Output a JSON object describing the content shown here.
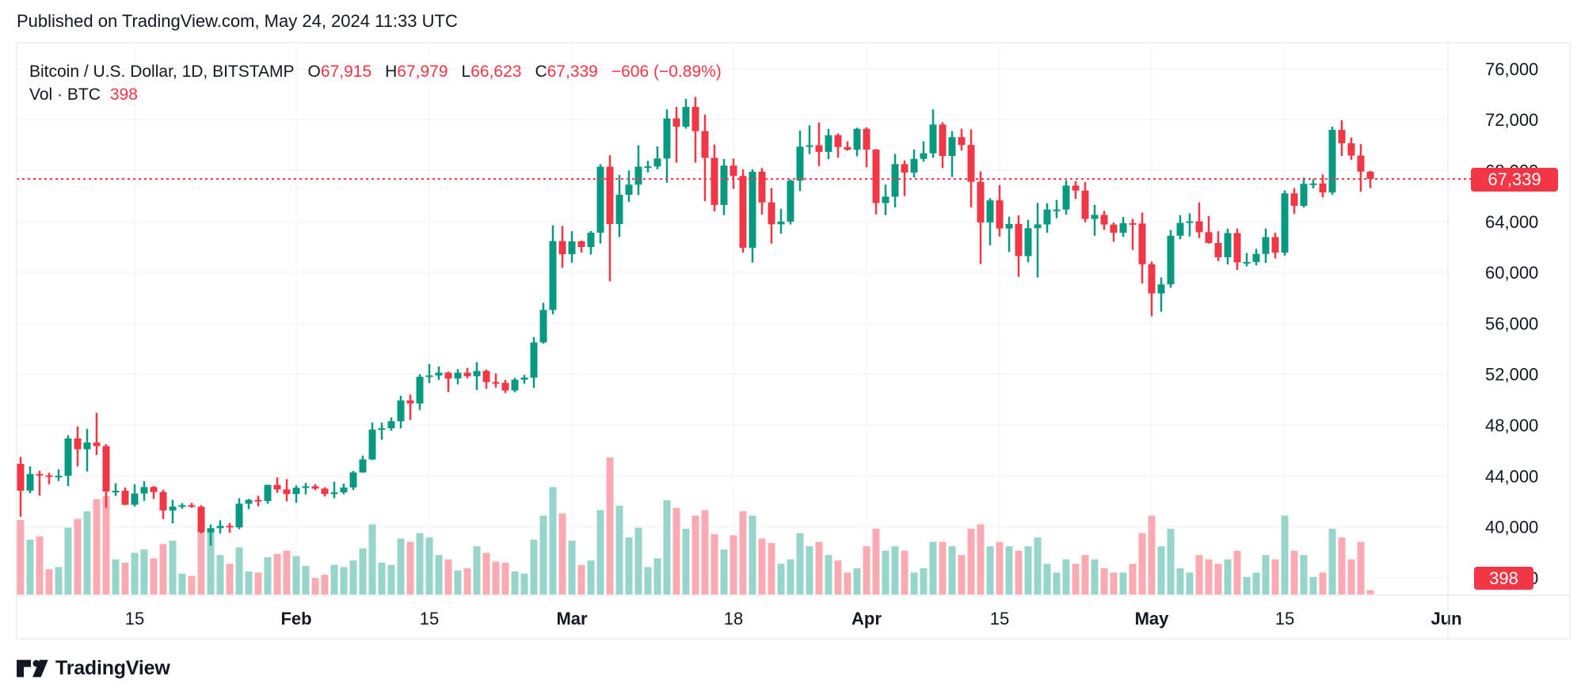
{
  "header": {
    "published": "Published on TradingView.com, May 24, 2024 11:33 UTC"
  },
  "legend": {
    "title": "Bitcoin / U.S. Dollar, 1D, BITSTAMP",
    "open_label": "O",
    "open_value": "67,915",
    "high_label": "H",
    "high_value": "67,979",
    "low_label": "L",
    "low_value": "66,623",
    "close_label": "C",
    "close_value": "67,339",
    "change": "−606 (−0.89%)",
    "volume_label": "Vol · BTC",
    "volume_value": "398"
  },
  "axes": {
    "price_badge": "67,339",
    "volume_badge": "398",
    "price_ticks": [
      {
        "price": 76000,
        "label": "76,000"
      },
      {
        "price": 72000,
        "label": "72,000"
      },
      {
        "price": 68000,
        "label": "68,000"
      },
      {
        "price": 64000,
        "label": "64,000"
      },
      {
        "price": 60000,
        "label": "60,000"
      },
      {
        "price": 56000,
        "label": "56,000"
      },
      {
        "price": 52000,
        "label": "52,000"
      },
      {
        "price": 48000,
        "label": "48,000"
      },
      {
        "price": 44000,
        "label": "44,000"
      },
      {
        "price": 40000,
        "label": "40,000"
      },
      {
        "price": 36000,
        "label": "36,000"
      }
    ],
    "time_ticks": [
      {
        "index": 12,
        "label": "15",
        "bold": false
      },
      {
        "index": 29,
        "label": "Feb",
        "bold": true
      },
      {
        "index": 43,
        "label": "15",
        "bold": false
      },
      {
        "index": 58,
        "label": "Mar",
        "bold": true
      },
      {
        "index": 75,
        "label": "18",
        "bold": false
      },
      {
        "index": 89,
        "label": "Apr",
        "bold": true
      },
      {
        "index": 103,
        "label": "15",
        "bold": false
      },
      {
        "index": 119,
        "label": "May",
        "bold": true
      },
      {
        "index": 133,
        "label": "15",
        "bold": false
      },
      {
        "index": 150,
        "label": "Jun",
        "bold": true
      }
    ]
  },
  "footer": {
    "brand": "TradingView"
  },
  "colors": {
    "up": "#089981",
    "down": "#f23645",
    "vol_up": "#97d4ca",
    "vol_down": "#f9abb1",
    "accent": "#f23645",
    "text": "#131722",
    "grid": "#f0f2f5",
    "border": "#e0e3eb"
  },
  "chart_data": {
    "type": "candlestick",
    "title": "Bitcoin / U.S. Dollar, 1D, BITSTAMP",
    "symbol": "BTC/USD",
    "exchange": "BITSTAMP",
    "interval": "1D",
    "legend_ohlc": {
      "open": 67915,
      "high": 67979,
      "low": 66623,
      "close": 67339,
      "change": -606,
      "change_pct": -0.89
    },
    "last_close": 67339,
    "last_volume_btc": 398,
    "price_ylim": [
      34700,
      78550
    ],
    "x_start": "2024-01-03",
    "x_end": "2024-06-01",
    "volume_scale_max": 12500,
    "candles": [
      [
        "2024-01-03",
        44950,
        45500,
        40800,
        42850,
        6800
      ],
      [
        "2024-01-04",
        42850,
        44750,
        42650,
        44150,
        5000
      ],
      [
        "2024-01-05",
        44160,
        44400,
        42450,
        44050,
        5300
      ],
      [
        "2024-01-06",
        44050,
        44250,
        43350,
        43970,
        2300
      ],
      [
        "2024-01-07",
        43970,
        44500,
        43600,
        44020,
        2500
      ],
      [
        "2024-01-08",
        44020,
        47200,
        43200,
        46950,
        6100
      ],
      [
        "2024-01-09",
        46950,
        47900,
        44750,
        46100,
        6900
      ],
      [
        "2024-01-10",
        46100,
        47700,
        44350,
        46630,
        7600
      ],
      [
        "2024-01-11",
        46630,
        48970,
        45650,
        46350,
        8700
      ],
      [
        "2024-01-12",
        46350,
        46500,
        41500,
        42780,
        9000
      ],
      [
        "2024-01-13",
        42780,
        43430,
        42430,
        42840,
        3200
      ],
      [
        "2024-01-14",
        42840,
        43100,
        41700,
        41740,
        2900
      ],
      [
        "2024-01-15",
        41740,
        43350,
        41600,
        42620,
        3800
      ],
      [
        "2024-01-16",
        42620,
        43580,
        42050,
        43130,
        4100
      ],
      [
        "2024-01-17",
        43130,
        43200,
        42190,
        42740,
        3300
      ],
      [
        "2024-01-18",
        42740,
        42920,
        40620,
        41290,
        4600
      ],
      [
        "2024-01-19",
        41290,
        42130,
        40280,
        41600,
        4900
      ],
      [
        "2024-01-20",
        41600,
        41870,
        41420,
        41700,
        1900
      ],
      [
        "2024-01-21",
        41700,
        41880,
        41500,
        41580,
        1700
      ],
      [
        "2024-01-22",
        41580,
        41700,
        39480,
        39560,
        5600
      ],
      [
        "2024-01-23",
        39560,
        40180,
        38530,
        39900,
        5900
      ],
      [
        "2024-01-24",
        39900,
        40520,
        39480,
        40080,
        3600
      ],
      [
        "2024-01-25",
        40080,
        40300,
        39550,
        39960,
        2800
      ],
      [
        "2024-01-26",
        39960,
        42250,
        39820,
        41820,
        4300
      ],
      [
        "2024-01-27",
        41820,
        42200,
        41400,
        42120,
        2100
      ],
      [
        "2024-01-28",
        42120,
        42450,
        41620,
        42030,
        2000
      ],
      [
        "2024-01-29",
        42030,
        43320,
        41820,
        43300,
        3400
      ],
      [
        "2024-01-30",
        43300,
        43880,
        42680,
        42940,
        3700
      ],
      [
        "2024-01-31",
        42940,
        43750,
        42000,
        42580,
        4000
      ],
      [
        "2024-02-01",
        42580,
        43260,
        41900,
        43080,
        3500
      ],
      [
        "2024-02-02",
        43080,
        43450,
        42550,
        43190,
        2600
      ],
      [
        "2024-02-03",
        43190,
        43360,
        42880,
        43010,
        1500
      ],
      [
        "2024-02-04",
        43010,
        43120,
        42400,
        42580,
        1800
      ],
      [
        "2024-02-05",
        42580,
        43550,
        42250,
        42710,
        2700
      ],
      [
        "2024-02-06",
        42710,
        43400,
        42560,
        43100,
        2500
      ],
      [
        "2024-02-07",
        43100,
        44400,
        42900,
        44280,
        3100
      ],
      [
        "2024-02-08",
        44280,
        45600,
        44250,
        45300,
        4200
      ],
      [
        "2024-02-09",
        45300,
        48200,
        45250,
        47650,
        6400
      ],
      [
        "2024-02-10",
        47650,
        48200,
        46850,
        47750,
        2900
      ],
      [
        "2024-02-11",
        47750,
        48600,
        47550,
        48300,
        2700
      ],
      [
        "2024-02-12",
        48300,
        50300,
        47750,
        49940,
        5100
      ],
      [
        "2024-02-13",
        49940,
        50400,
        48400,
        49700,
        4800
      ],
      [
        "2024-02-14",
        49700,
        52000,
        49200,
        51800,
        5600
      ],
      [
        "2024-02-15",
        51800,
        52800,
        51300,
        51900,
        5200
      ],
      [
        "2024-02-16",
        51900,
        52600,
        51550,
        52120,
        3600
      ],
      [
        "2024-02-17",
        52120,
        52200,
        50600,
        51660,
        3200
      ],
      [
        "2024-02-18",
        51660,
        52400,
        51200,
        52120,
        2200
      ],
      [
        "2024-02-19",
        52120,
        52500,
        51680,
        51840,
        2400
      ],
      [
        "2024-02-20",
        51840,
        52940,
        50760,
        52250,
        4400
      ],
      [
        "2024-02-21",
        52250,
        52370,
        50850,
        51380,
        3800
      ],
      [
        "2024-02-22",
        51380,
        52060,
        50940,
        51320,
        3000
      ],
      [
        "2024-02-23",
        51320,
        51550,
        50520,
        50720,
        2900
      ],
      [
        "2024-02-24",
        50720,
        51720,
        50580,
        51570,
        2100
      ],
      [
        "2024-02-25",
        51570,
        51950,
        51250,
        51730,
        1900
      ],
      [
        "2024-02-26",
        51730,
        54900,
        50920,
        54500,
        5000
      ],
      [
        "2024-02-27",
        54500,
        57600,
        54400,
        57050,
        7200
      ],
      [
        "2024-02-28",
        57050,
        63700,
        56700,
        62460,
        9800
      ],
      [
        "2024-02-29",
        62460,
        63650,
        60360,
        61430,
        7400
      ],
      [
        "2024-03-01",
        61430,
        63230,
        60770,
        62440,
        4900
      ],
      [
        "2024-03-02",
        62440,
        62500,
        61560,
        61990,
        2700
      ],
      [
        "2024-03-03",
        61990,
        63250,
        61400,
        63120,
        3100
      ],
      [
        "2024-03-04",
        63120,
        68500,
        62270,
        68300,
        7700
      ],
      [
        "2024-03-05",
        68300,
        69200,
        59300,
        63800,
        12500
      ],
      [
        "2024-03-06",
        63800,
        67650,
        62780,
        66100,
        8100
      ],
      [
        "2024-03-07",
        66100,
        68000,
        65550,
        66900,
        5200
      ],
      [
        "2024-03-08",
        66900,
        69990,
        66080,
        68300,
        6100
      ],
      [
        "2024-03-09",
        68300,
        68760,
        67850,
        68330,
        2500
      ],
      [
        "2024-03-10",
        68330,
        69900,
        68100,
        68950,
        3300
      ],
      [
        "2024-03-11",
        68950,
        72800,
        67050,
        72100,
        8600
      ],
      [
        "2024-03-12",
        72100,
        73000,
        68620,
        71450,
        7900
      ],
      [
        "2024-03-13",
        71450,
        73630,
        71300,
        73000,
        6000
      ],
      [
        "2024-03-14",
        73000,
        73790,
        68620,
        71100,
        7200
      ],
      [
        "2024-03-15",
        71100,
        72400,
        65600,
        69000,
        7700
      ],
      [
        "2024-03-16",
        69000,
        70050,
        64800,
        65300,
        5500
      ],
      [
        "2024-03-17",
        65300,
        68900,
        64500,
        68390,
        4100
      ],
      [
        "2024-03-18",
        68390,
        68950,
        66560,
        67580,
        5400
      ],
      [
        "2024-03-19",
        67580,
        68100,
        61550,
        61930,
        7600
      ],
      [
        "2024-03-20",
        61930,
        68100,
        60770,
        67910,
        7200
      ],
      [
        "2024-03-21",
        67910,
        68200,
        64550,
        65500,
        5100
      ],
      [
        "2024-03-22",
        65500,
        66620,
        62260,
        63780,
        4700
      ],
      [
        "2024-03-23",
        63780,
        65000,
        63060,
        63990,
        2800
      ],
      [
        "2024-03-24",
        63990,
        67300,
        63770,
        67210,
        3200
      ],
      [
        "2024-03-25",
        67210,
        71150,
        66400,
        69880,
        5600
      ],
      [
        "2024-03-26",
        69880,
        71560,
        69300,
        69990,
        4400
      ],
      [
        "2024-03-27",
        69990,
        71770,
        68360,
        69470,
        4800
      ],
      [
        "2024-03-28",
        69470,
        71270,
        68900,
        70780,
        3600
      ],
      [
        "2024-03-29",
        70780,
        70920,
        69020,
        69850,
        3100
      ],
      [
        "2024-03-30",
        69850,
        70300,
        69560,
        69640,
        2000
      ],
      [
        "2024-03-31",
        69640,
        71370,
        69120,
        71280,
        2400
      ],
      [
        "2024-04-01",
        71280,
        71400,
        68250,
        69650,
        4400
      ],
      [
        "2024-04-02",
        69650,
        69700,
        64560,
        65450,
        6000
      ],
      [
        "2024-04-03",
        65450,
        66900,
        64500,
        65950,
        4000
      ],
      [
        "2024-04-04",
        65950,
        69300,
        65100,
        68510,
        4400
      ],
      [
        "2024-04-05",
        68510,
        68800,
        66000,
        67840,
        4000
      ],
      [
        "2024-04-06",
        67840,
        69650,
        67450,
        68920,
        2000
      ],
      [
        "2024-04-07",
        68920,
        70300,
        68700,
        69360,
        2400
      ],
      [
        "2024-04-08",
        69360,
        72800,
        69000,
        71620,
        4800
      ],
      [
        "2024-04-09",
        71620,
        71800,
        68200,
        69150,
        4800
      ],
      [
        "2024-04-10",
        69150,
        71100,
        67500,
        70630,
        4400
      ],
      [
        "2024-04-11",
        70630,
        71300,
        69570,
        70010,
        3600
      ],
      [
        "2024-04-12",
        70010,
        71230,
        65110,
        67120,
        6000
      ],
      [
        "2024-04-13",
        67120,
        67930,
        60660,
        63930,
        6400
      ],
      [
        "2024-04-14",
        63930,
        65830,
        62130,
        65660,
        4400
      ],
      [
        "2024-04-15",
        65660,
        66870,
        62820,
        63450,
        4800
      ],
      [
        "2024-04-16",
        63450,
        64380,
        61600,
        63800,
        4400
      ],
      [
        "2024-04-17",
        63800,
        64480,
        59650,
        61280,
        4000
      ],
      [
        "2024-04-18",
        61280,
        64120,
        60800,
        63470,
        4400
      ],
      [
        "2024-04-19",
        63470,
        65460,
        59600,
        63770,
        5200
      ],
      [
        "2024-04-20",
        63770,
        65420,
        63120,
        64940,
        2800
      ],
      [
        "2024-04-21",
        64940,
        65690,
        64260,
        64940,
        2000
      ],
      [
        "2024-04-22",
        64940,
        67230,
        64530,
        66820,
        3200
      ],
      [
        "2024-04-23",
        66820,
        67180,
        65770,
        66430,
        2800
      ],
      [
        "2024-04-24",
        66430,
        67100,
        63940,
        64200,
        3600
      ],
      [
        "2024-04-25",
        64200,
        65300,
        62880,
        64520,
        3200
      ],
      [
        "2024-04-26",
        64520,
        64830,
        63330,
        63760,
        2400
      ],
      [
        "2024-04-27",
        63760,
        63920,
        62420,
        63120,
        2000
      ],
      [
        "2024-04-28",
        63120,
        64350,
        62790,
        63870,
        2000
      ],
      [
        "2024-04-29",
        63870,
        64200,
        61770,
        63840,
        2800
      ],
      [
        "2024-04-30",
        63840,
        64700,
        59130,
        60640,
        5600
      ],
      [
        "2024-05-01",
        60640,
        60840,
        56550,
        58350,
        7200
      ],
      [
        "2024-05-02",
        58350,
        59600,
        56910,
        59060,
        4400
      ],
      [
        "2024-05-03",
        59060,
        63330,
        58800,
        62880,
        6000
      ],
      [
        "2024-05-04",
        62880,
        64500,
        62600,
        63890,
        2400
      ],
      [
        "2024-05-05",
        63890,
        64630,
        62820,
        64010,
        2000
      ],
      [
        "2024-05-06",
        64010,
        65500,
        62700,
        63160,
        3600
      ],
      [
        "2024-05-07",
        63160,
        64420,
        62260,
        62310,
        3200
      ],
      [
        "2024-05-08",
        62310,
        63230,
        60890,
        61190,
        2800
      ],
      [
        "2024-05-09",
        61190,
        63430,
        60630,
        63090,
        3200
      ],
      [
        "2024-05-10",
        63090,
        63450,
        60190,
        60790,
        4000
      ],
      [
        "2024-05-11",
        60790,
        61520,
        60470,
        60820,
        1600
      ],
      [
        "2024-05-12",
        60820,
        61850,
        60560,
        61450,
        2000
      ],
      [
        "2024-05-13",
        61450,
        63450,
        60750,
        62770,
        3600
      ],
      [
        "2024-05-14",
        62770,
        63110,
        61100,
        61550,
        3200
      ],
      [
        "2024-05-15",
        61550,
        66440,
        61320,
        66210,
        7200
      ],
      [
        "2024-05-16",
        66210,
        66620,
        64600,
        65230,
        4000
      ],
      [
        "2024-05-17",
        65230,
        67450,
        65100,
        66960,
        3600
      ],
      [
        "2024-05-18",
        66960,
        67330,
        66600,
        66990,
        1600
      ],
      [
        "2024-05-19",
        66990,
        67700,
        65900,
        66280,
        2000
      ],
      [
        "2024-05-20",
        66280,
        71450,
        66100,
        71200,
        6000
      ],
      [
        "2024-05-21",
        71200,
        71950,
        69150,
        70150,
        5200
      ],
      [
        "2024-05-22",
        70150,
        70600,
        68840,
        69180,
        3200
      ],
      [
        "2024-05-23",
        69180,
        70080,
        66330,
        67920,
        4800
      ],
      [
        "2024-05-24",
        67915,
        67979,
        66623,
        67339,
        398
      ]
    ]
  }
}
